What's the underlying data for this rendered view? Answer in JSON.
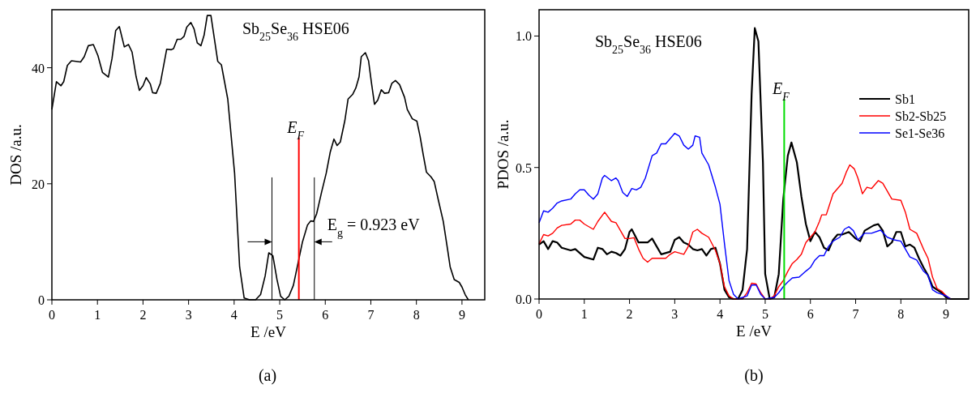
{
  "chart_data": [
    {
      "type": "line",
      "title": "Sb$_{25}$Se$_{36}$ HSE06",
      "xlabel": "E /eV",
      "ylabel": "DOS /a.u.",
      "xlim": [
        0,
        9.5
      ],
      "ylim": [
        0,
        50
      ],
      "xticks": [
        0,
        1,
        2,
        3,
        4,
        5,
        6,
        7,
        8,
        9
      ],
      "yticks": [
        0,
        20,
        40
      ],
      "grid": false,
      "legend": false,
      "series": [
        {
          "color": "#000000",
          "x": [
            0,
            0.1,
            0.2,
            0.26,
            0.34,
            0.43,
            0.53,
            0.63,
            0.71,
            0.8,
            0.91,
            1.01,
            1.11,
            1.24,
            1.32,
            1.4,
            1.48,
            1.59,
            1.68,
            1.76,
            1.85,
            1.92,
            2.0,
            2.07,
            2.16,
            2.21,
            2.29,
            2.38,
            2.52,
            2.62,
            2.67,
            2.75,
            2.83,
            2.9,
            2.96,
            3.05,
            3.12,
            3.19,
            3.27,
            3.34,
            3.41,
            3.49,
            3.64,
            3.72,
            3.86,
            4.01,
            4.12,
            4.22,
            4.34,
            4.47,
            4.58,
            4.68,
            4.76,
            4.85,
            4.94,
            5.02,
            5.11,
            5.2,
            5.3,
            5.42,
            5.5,
            5.61,
            5.68,
            5.74,
            5.81,
            5.92,
            6.02,
            6.11,
            6.19,
            6.26,
            6.33,
            6.43,
            6.5,
            6.6,
            6.67,
            6.74,
            6.79,
            6.88,
            6.95,
            7.01,
            7.08,
            7.15,
            7.23,
            7.3,
            7.39,
            7.46,
            7.54,
            7.63,
            7.74,
            7.8,
            7.91,
            8.01,
            8.08,
            8.15,
            8.22,
            8.32,
            8.39,
            8.49,
            8.59,
            8.68,
            8.74,
            8.83,
            8.94,
            9.0,
            9.07,
            9.14
          ],
          "values": [
            32.8,
            37.6,
            36.9,
            37.6,
            40.4,
            41.2,
            41.1,
            41.0,
            41.9,
            43.8,
            44.0,
            42.1,
            39.2,
            38.4,
            41.6,
            46.4,
            47.1,
            43.6,
            44.0,
            42.7,
            38.4,
            36.1,
            36.9,
            38.3,
            37.2,
            35.7,
            35.6,
            37.3,
            43.2,
            43.1,
            43.3,
            44.9,
            44.9,
            45.4,
            47.0,
            47.8,
            46.7,
            44.3,
            43.8,
            45.6,
            49.0,
            49.0,
            41.1,
            40.5,
            34.6,
            21.8,
            5.7,
            0.3,
            0,
            0,
            0.9,
            4.1,
            8.1,
            7.6,
            3.5,
            0.6,
            0,
            0.6,
            2.5,
            7.0,
            10.0,
            12.9,
            13.6,
            13.5,
            14.8,
            18.6,
            21.8,
            25.5,
            27.7,
            26.6,
            27.2,
            30.9,
            34.6,
            35.4,
            36.5,
            38.4,
            41.9,
            42.6,
            41.2,
            37.6,
            33.7,
            34.4,
            36.2,
            35.6,
            35.7,
            37.3,
            37.8,
            37.1,
            34.9,
            32.8,
            31.2,
            30.8,
            28.2,
            25.0,
            22.0,
            21.2,
            20.4,
            16.9,
            13.5,
            8.9,
            5.7,
            3.5,
            3.0,
            2.2,
            0.9,
            0
          ]
        }
      ],
      "ref_lines": [
        {
          "axis": "x",
          "value": 4.83,
          "color": "#000000"
        },
        {
          "axis": "x",
          "value": 5.42,
          "label": "E$_{F}$",
          "color": "#ff0000"
        },
        {
          "axis": "x",
          "value": 5.76,
          "color": "#000000"
        }
      ],
      "annotations": [
        {
          "text": "E$_{g}$ = 0.923 eV",
          "x": 5.76,
          "y": 10
        },
        "(a)"
      ]
    },
    {
      "type": "line",
      "title": "Sb$_{25}$Se$_{36}$ HSE06",
      "xlabel": "E /eV",
      "ylabel": "PDOS /a.u.",
      "xlim": [
        0,
        9.5
      ],
      "ylim": [
        0,
        1.1
      ],
      "xticks": [
        0,
        1,
        2,
        3,
        4,
        5,
        6,
        7,
        8,
        9
      ],
      "yticks": [
        {
          "value": 0,
          "label": "0.0"
        },
        0.5,
        {
          "value": 1,
          "label": "1.0"
        }
      ],
      "grid": false,
      "legend": "right",
      "series": [
        {
          "name": "Sb1",
          "color": "#000000",
          "x": [
            0,
            0.1,
            0.2,
            0.3,
            0.4,
            0.5,
            0.7,
            0.8,
            1.0,
            1.2,
            1.3,
            1.4,
            1.5,
            1.6,
            1.7,
            1.8,
            1.9,
            2.0,
            2.05,
            2.2,
            2.4,
            2.5,
            2.6,
            2.7,
            2.9,
            3.0,
            3.1,
            3.2,
            3.3,
            3.4,
            3.5,
            3.6,
            3.7,
            3.8,
            3.9,
            4.0,
            4.1,
            4.2,
            4.3,
            4.4,
            4.5,
            4.6,
            4.7,
            4.77,
            4.85,
            4.95,
            5.0,
            5.1,
            5.2,
            5.3,
            5.4,
            5.5,
            5.58,
            5.7,
            5.8,
            5.9,
            6.0,
            6.1,
            6.2,
            6.3,
            6.4,
            6.5,
            6.6,
            6.7,
            6.85,
            7.0,
            7.1,
            7.2,
            7.4,
            7.5,
            7.6,
            7.7,
            7.8,
            7.9,
            8.0,
            8.1,
            8.2,
            8.3,
            8.4,
            8.5,
            8.6,
            8.7,
            8.8,
            8.9,
            9.0,
            9.1,
            9.5
          ],
          "values": [
            0.207,
            0.22,
            0.19,
            0.22,
            0.215,
            0.195,
            0.185,
            0.19,
            0.16,
            0.15,
            0.195,
            0.19,
            0.17,
            0.18,
            0.175,
            0.165,
            0.19,
            0.255,
            0.265,
            0.215,
            0.215,
            0.23,
            0.2,
            0.17,
            0.18,
            0.225,
            0.235,
            0.215,
            0.207,
            0.19,
            0.185,
            0.19,
            0.165,
            0.19,
            0.195,
            0.135,
            0.035,
            0.006,
            0,
            0,
            0.035,
            0.19,
            0.78,
            1.03,
            0.98,
            0.52,
            0.095,
            0,
            0.006,
            0.095,
            0.38,
            0.545,
            0.595,
            0.52,
            0.39,
            0.285,
            0.22,
            0.255,
            0.235,
            0.195,
            0.185,
            0.225,
            0.245,
            0.245,
            0.255,
            0.23,
            0.22,
            0.26,
            0.28,
            0.285,
            0.26,
            0.2,
            0.215,
            0.255,
            0.255,
            0.2,
            0.207,
            0.195,
            0.155,
            0.12,
            0.09,
            0.047,
            0.035,
            0.024,
            0.006,
            0,
            0
          ]
        },
        {
          "name": "Sb2-Sb25",
          "color": "#ff0000",
          "x": [
            0,
            0.1,
            0.2,
            0.3,
            0.4,
            0.5,
            0.7,
            0.8,
            0.9,
            1.0,
            1.2,
            1.3,
            1.45,
            1.6,
            1.7,
            1.8,
            1.9,
            2.0,
            2.1,
            2.2,
            2.3,
            2.4,
            2.5,
            2.6,
            2.8,
            2.9,
            3.0,
            3.2,
            3.3,
            3.4,
            3.5,
            3.6,
            3.75,
            3.9,
            4.0,
            4.1,
            4.2,
            4.3,
            4.5,
            4.6,
            4.7,
            4.8,
            4.9,
            5.0,
            5.1,
            5.2,
            5.3,
            5.4,
            5.5,
            5.6,
            5.7,
            5.8,
            5.9,
            6.0,
            6.1,
            6.2,
            6.25,
            6.35,
            6.5,
            6.7,
            6.8,
            6.87,
            6.97,
            7.05,
            7.15,
            7.25,
            7.35,
            7.5,
            7.6,
            7.7,
            7.8,
            8.0,
            8.1,
            8.2,
            8.35,
            8.5,
            8.6,
            8.7,
            8.8,
            8.9,
            9.0,
            9.1
          ],
          "values": [
            0.21,
            0.245,
            0.24,
            0.25,
            0.27,
            0.28,
            0.285,
            0.3,
            0.3,
            0.285,
            0.265,
            0.295,
            0.33,
            0.295,
            0.29,
            0.26,
            0.23,
            0.23,
            0.233,
            0.19,
            0.155,
            0.14,
            0.155,
            0.155,
            0.155,
            0.17,
            0.18,
            0.17,
            0.2,
            0.255,
            0.265,
            0.25,
            0.235,
            0.185,
            0.135,
            0.047,
            0.012,
            0,
            0,
            0.024,
            0.06,
            0.057,
            0.024,
            0,
            0,
            0.012,
            0.047,
            0.07,
            0.105,
            0.135,
            0.15,
            0.17,
            0.215,
            0.235,
            0.255,
            0.295,
            0.32,
            0.32,
            0.4,
            0.44,
            0.485,
            0.51,
            0.495,
            0.46,
            0.4,
            0.425,
            0.42,
            0.45,
            0.44,
            0.41,
            0.38,
            0.375,
            0.33,
            0.265,
            0.25,
            0.19,
            0.155,
            0.083,
            0.04,
            0.03,
            0.012,
            0
          ]
        },
        {
          "name": "Se1-Se36",
          "color": "#0000ff",
          "x": [
            0,
            0.1,
            0.2,
            0.3,
            0.4,
            0.5,
            0.7,
            0.8,
            0.9,
            1.0,
            1.1,
            1.2,
            1.3,
            1.4,
            1.45,
            1.6,
            1.7,
            1.75,
            1.85,
            1.95,
            2.05,
            2.15,
            2.25,
            2.35,
            2.5,
            2.6,
            2.7,
            2.8,
            2.9,
            3.0,
            3.1,
            3.2,
            3.3,
            3.4,
            3.45,
            3.55,
            3.6,
            3.75,
            3.9,
            4.0,
            4.1,
            4.2,
            4.3,
            4.4,
            4.6,
            4.7,
            4.8,
            4.9,
            5.0,
            5.2,
            5.3,
            5.4,
            5.5,
            5.6,
            5.75,
            5.9,
            6.0,
            6.1,
            6.2,
            6.3,
            6.4,
            6.5,
            6.65,
            6.75,
            6.85,
            6.95,
            7.05,
            7.2,
            7.35,
            7.55,
            7.7,
            7.85,
            8.0,
            8.2,
            8.35,
            8.5,
            8.6,
            8.7,
            8.8,
            9.0,
            9.1
          ],
          "values": [
            0.29,
            0.335,
            0.33,
            0.345,
            0.365,
            0.373,
            0.38,
            0.4,
            0.415,
            0.415,
            0.395,
            0.38,
            0.4,
            0.46,
            0.47,
            0.45,
            0.46,
            0.45,
            0.405,
            0.39,
            0.42,
            0.415,
            0.425,
            0.46,
            0.545,
            0.555,
            0.59,
            0.59,
            0.61,
            0.63,
            0.62,
            0.585,
            0.57,
            0.585,
            0.62,
            0.615,
            0.555,
            0.51,
            0.425,
            0.36,
            0.21,
            0.07,
            0.018,
            0,
            0.012,
            0.053,
            0.053,
            0.018,
            0,
            0.006,
            0.024,
            0.047,
            0.065,
            0.08,
            0.083,
            0.106,
            0.12,
            0.148,
            0.165,
            0.165,
            0.2,
            0.22,
            0.235,
            0.265,
            0.275,
            0.26,
            0.225,
            0.25,
            0.25,
            0.262,
            0.235,
            0.225,
            0.22,
            0.16,
            0.148,
            0.106,
            0.09,
            0.035,
            0.024,
            0.012,
            0
          ]
        }
      ],
      "ref_lines": [
        {
          "axis": "x",
          "value": 5.42,
          "label": "E$_{F}$",
          "color": "#00dd00"
        }
      ],
      "annotations": [
        "(b)"
      ]
    }
  ]
}
